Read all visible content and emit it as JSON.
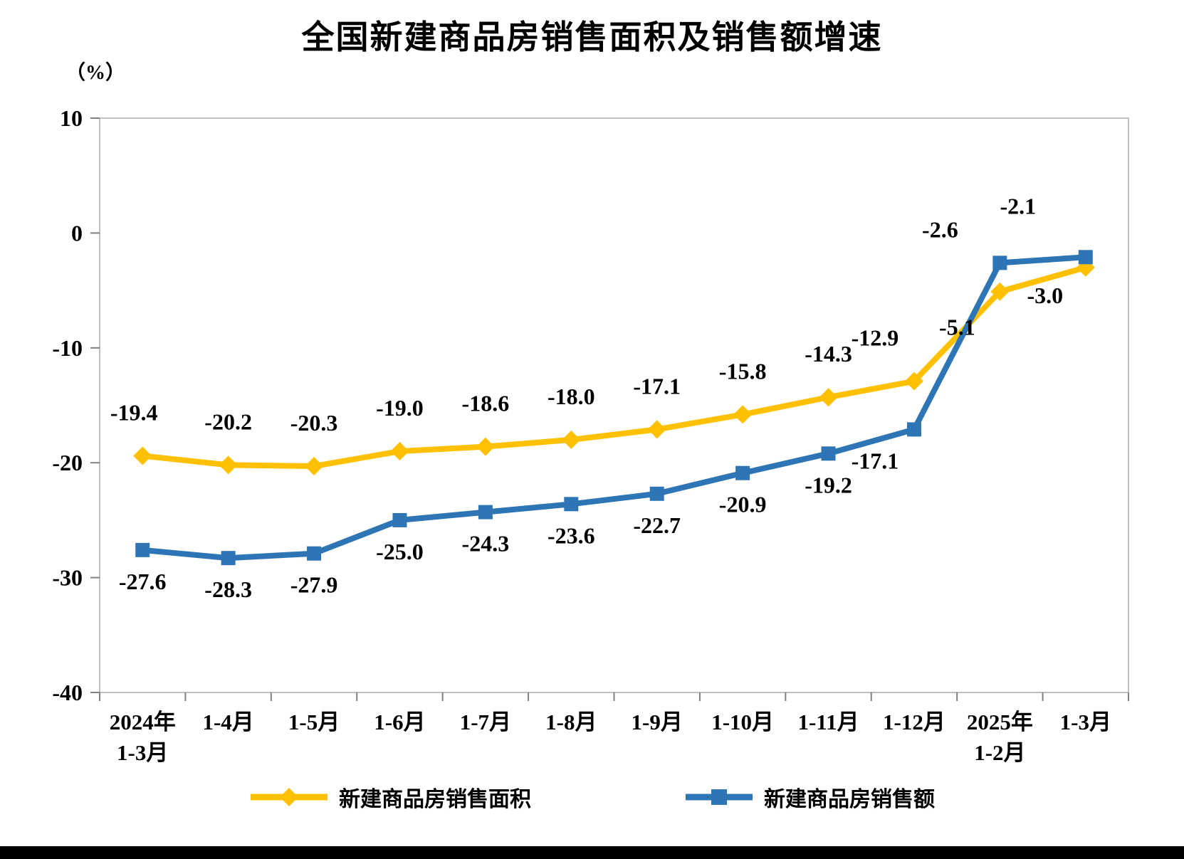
{
  "chart": {
    "title": "全国新建商品房销售面积及销售额增速",
    "unit_label": "（%）"
  },
  "chart_data": {
    "type": "line",
    "title": "全国新建商品房销售面积及销售额增速",
    "ylabel": "（%）",
    "xlabel": "",
    "ylim": [
      -40,
      10
    ],
    "yticks": [
      10,
      0,
      -10,
      -20,
      -30,
      -40
    ],
    "grid": false,
    "legend_position": "bottom",
    "categories": [
      [
        "2024年",
        "1-3月"
      ],
      [
        "1-4月"
      ],
      [
        "1-5月"
      ],
      [
        "1-6月"
      ],
      [
        "1-7月"
      ],
      [
        "1-8月"
      ],
      [
        "1-9月"
      ],
      [
        "1-10月"
      ],
      [
        "1-11月"
      ],
      [
        "1-12月"
      ],
      [
        "2025年",
        "1-2月"
      ],
      [
        "1-3月"
      ]
    ],
    "series": [
      {
        "name": "新建商品房销售面积",
        "color": "#FFC000",
        "marker": "diamond",
        "values": [
          -19.4,
          -20.2,
          -20.3,
          -19.0,
          -18.6,
          -18.0,
          -17.1,
          -15.8,
          -14.3,
          -12.9,
          -5.1,
          -3.0
        ]
      },
      {
        "name": "新建商品房销售额",
        "color": "#2E75B6",
        "marker": "square",
        "values": [
          -27.6,
          -28.3,
          -27.9,
          -25.0,
          -24.3,
          -23.6,
          -22.7,
          -20.9,
          -19.2,
          -17.1,
          -2.6,
          -2.1
        ]
      }
    ]
  },
  "colors": {
    "axis_border": "#BFBFBF",
    "tick": "#808080",
    "text": "#000000",
    "background": "#FFFFFF",
    "bottom_bar": "#000000"
  }
}
